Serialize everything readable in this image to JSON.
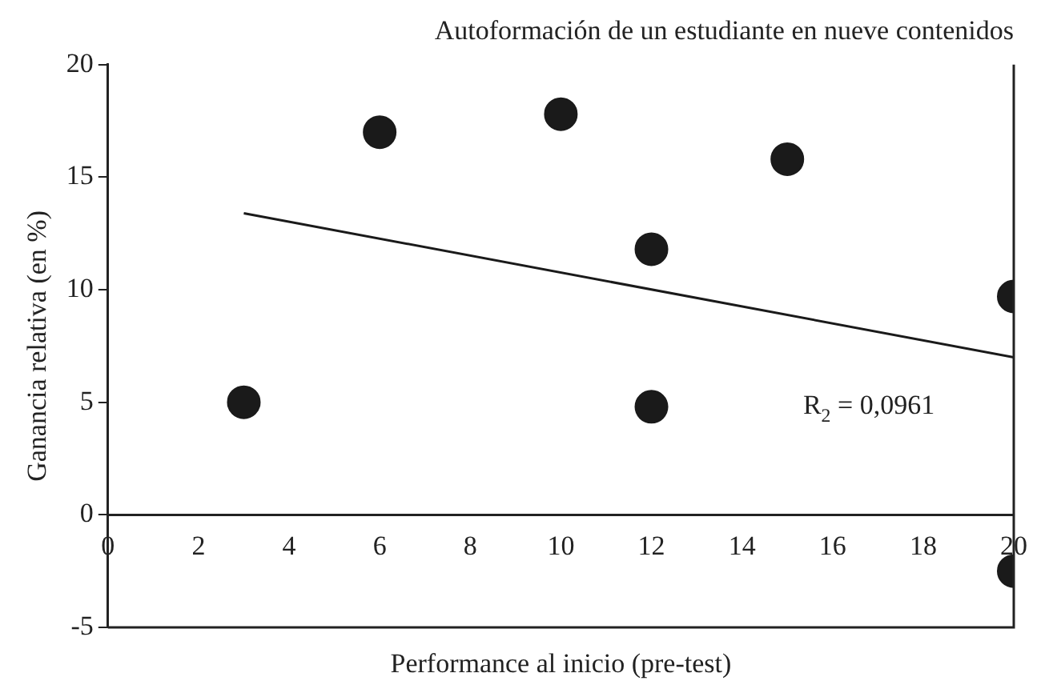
{
  "chart_data": {
    "type": "scatter",
    "title": "Autoformación de un estudiante en nueve contenidos",
    "xlabel": "Performance al inicio (pre-test)",
    "ylabel": "Ganancia relativa (en %)",
    "xlim": [
      0,
      20
    ],
    "xticks": [
      0,
      2,
      4,
      6,
      8,
      10,
      12,
      14,
      16,
      18,
      20
    ],
    "ylim": [
      -5,
      20
    ],
    "yticks": [
      -5,
      0,
      5,
      10,
      15,
      20
    ],
    "grid": false,
    "legend": false,
    "marker": "circle",
    "series": [
      {
        "color": "#1a1a1a",
        "x": [
          3,
          6,
          10,
          12,
          12,
          15,
          20,
          20
        ],
        "values": [
          5,
          17,
          17.8,
          11.8,
          4.8,
          15.8,
          9.7,
          -2.5
        ]
      },
      {
        "type": "line",
        "color": "#1a1a1a",
        "marker": "none",
        "line_style": "solid",
        "x": [
          3,
          20
        ],
        "values": [
          13.4,
          7.0
        ]
      }
    ],
    "annotations": [
      "R$_{2}$ = 0,0961"
    ]
  }
}
